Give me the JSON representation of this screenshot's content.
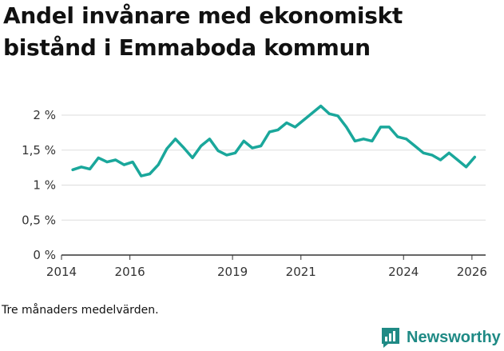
{
  "title": "Andel invånare med ekonomiskt bistånd i Emmaboda kommun",
  "footnote": "Tre månaders medelvärden.",
  "brand": {
    "name": "Newsworthy",
    "icon": "newsworthy-logo-icon"
  },
  "colors": {
    "line": "#1aa79b",
    "grid": "#dddddd",
    "axis": "#333333",
    "brand": "#1f8a85"
  },
  "chart_data": {
    "type": "line",
    "title": "Andel invånare med ekonomiskt bistånd i Emmaboda kommun",
    "xlabel": "",
    "ylabel": "",
    "xlim": [
      2014.0,
      2026.4
    ],
    "ylim": [
      0,
      2.15
    ],
    "yticks": [
      0,
      0.5,
      1,
      1.5,
      2
    ],
    "ytick_labels": [
      "0 %",
      "0,5 %",
      "1 %",
      "1,5 %",
      "2 %"
    ],
    "xticks": [
      2014,
      2016,
      2019,
      2021,
      2024,
      2026
    ],
    "xtick_labels": [
      "2014",
      "2016",
      "2019",
      "2021",
      "2024",
      "2026"
    ],
    "grid": true,
    "series": [
      {
        "name": "Andel invånare med ekonomiskt bistånd",
        "x": [
          2014.33,
          2014.58,
          2014.83,
          2015.08,
          2015.33,
          2015.58,
          2015.83,
          2016.08,
          2016.33,
          2016.58,
          2016.83,
          2017.08,
          2017.33,
          2017.58,
          2017.83,
          2018.08,
          2018.33,
          2018.58,
          2018.83,
          2019.08,
          2019.33,
          2019.58,
          2019.83,
          2020.08,
          2020.33,
          2020.58,
          2020.83,
          2021.08,
          2021.33,
          2021.58,
          2021.83,
          2022.08,
          2022.33,
          2022.58,
          2022.83,
          2023.08,
          2023.33,
          2023.58,
          2023.83,
          2024.08,
          2024.33,
          2024.58,
          2024.83,
          2025.08,
          2025.33,
          2025.58,
          2025.83,
          2026.08
        ],
        "values": [
          1.22,
          1.26,
          1.23,
          1.39,
          1.33,
          1.36,
          1.29,
          1.33,
          1.13,
          1.16,
          1.29,
          1.52,
          1.66,
          1.53,
          1.39,
          1.56,
          1.66,
          1.49,
          1.43,
          1.46,
          1.63,
          1.53,
          1.56,
          1.76,
          1.79,
          1.89,
          1.83,
          1.93,
          2.03,
          2.13,
          2.02,
          1.99,
          1.83,
          1.63,
          1.66,
          1.63,
          1.83,
          1.83,
          1.69,
          1.66,
          1.56,
          1.46,
          1.43,
          1.36,
          1.46,
          1.36,
          1.26,
          1.4
        ]
      }
    ]
  }
}
